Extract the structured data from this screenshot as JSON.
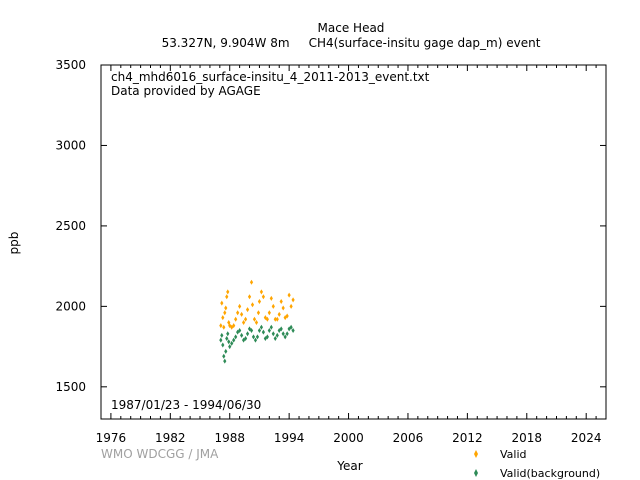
{
  "header": {
    "station": "Mace Head",
    "subtitle": "53.327N, 9.904W 8m     CH4(surface-insitu gage dap_m) event"
  },
  "info": {
    "filename": "ch4_mhd6016_surface-insitu_4_2011-2013_event.txt",
    "provider": "Data provided by AGAGE",
    "period": "1987/01/23 - 1994/06/30"
  },
  "watermark": "WMO WDCGG / JMA",
  "colors": {
    "valid": "#ffa500",
    "valid_background": "#2e8b57",
    "axis": "#000000"
  },
  "chart_data": {
    "type": "scatter",
    "xlabel": "Year",
    "ylabel": "ppb",
    "xlim": [
      1975,
      2026
    ],
    "ylim": [
      1300,
      3500
    ],
    "xticks": [
      "1976",
      "1982",
      "1988",
      "1994",
      "2000",
      "2006",
      "2012",
      "2018",
      "2024"
    ],
    "yticks": [
      "1500",
      "2000",
      "2500",
      "3000",
      "3500"
    ],
    "grid": false,
    "legend_position": "bottom-right",
    "series": [
      {
        "name": "Valid",
        "color": "#ffa500",
        "points": [
          [
            1987.1,
            1880
          ],
          [
            1987.2,
            2020
          ],
          [
            1987.3,
            1930
          ],
          [
            1987.4,
            1870
          ],
          [
            1987.5,
            1960
          ],
          [
            1987.6,
            1990
          ],
          [
            1987.7,
            2060
          ],
          [
            1987.8,
            2090
          ],
          [
            1987.9,
            1900
          ],
          [
            1988.0,
            1880
          ],
          [
            1988.2,
            1870
          ],
          [
            1988.4,
            1880
          ],
          [
            1988.6,
            1920
          ],
          [
            1988.8,
            1960
          ],
          [
            1989.0,
            2000
          ],
          [
            1989.2,
            1950
          ],
          [
            1989.4,
            1900
          ],
          [
            1989.6,
            1920
          ],
          [
            1989.8,
            1980
          ],
          [
            1990.0,
            2060
          ],
          [
            1990.2,
            2150
          ],
          [
            1990.3,
            2010
          ],
          [
            1990.5,
            1920
          ],
          [
            1990.7,
            1900
          ],
          [
            1990.9,
            1960
          ],
          [
            1991.0,
            2030
          ],
          [
            1991.2,
            2090
          ],
          [
            1991.4,
            2060
          ],
          [
            1991.6,
            1930
          ],
          [
            1991.8,
            1920
          ],
          [
            1992.0,
            1960
          ],
          [
            1992.2,
            2050
          ],
          [
            1992.4,
            2000
          ],
          [
            1992.6,
            1920
          ],
          [
            1992.8,
            1920
          ],
          [
            1993.0,
            1950
          ],
          [
            1993.2,
            2030
          ],
          [
            1993.4,
            1990
          ],
          [
            1993.6,
            1930
          ],
          [
            1993.8,
            1940
          ],
          [
            1994.0,
            2070
          ],
          [
            1994.2,
            2000
          ],
          [
            1994.4,
            2040
          ]
        ]
      },
      {
        "name": "Valid(background)",
        "color": "#2e8b57",
        "points": [
          [
            1987.1,
            1790
          ],
          [
            1987.2,
            1820
          ],
          [
            1987.3,
            1760
          ],
          [
            1987.4,
            1690
          ],
          [
            1987.5,
            1660
          ],
          [
            1987.6,
            1720
          ],
          [
            1987.7,
            1800
          ],
          [
            1987.8,
            1830
          ],
          [
            1987.9,
            1780
          ],
          [
            1988.0,
            1750
          ],
          [
            1988.2,
            1770
          ],
          [
            1988.4,
            1790
          ],
          [
            1988.6,
            1810
          ],
          [
            1988.8,
            1840
          ],
          [
            1989.0,
            1850
          ],
          [
            1989.2,
            1820
          ],
          [
            1989.4,
            1790
          ],
          [
            1989.6,
            1800
          ],
          [
            1989.8,
            1830
          ],
          [
            1990.0,
            1860
          ],
          [
            1990.2,
            1850
          ],
          [
            1990.4,
            1810
          ],
          [
            1990.6,
            1790
          ],
          [
            1990.8,
            1810
          ],
          [
            1991.0,
            1850
          ],
          [
            1991.2,
            1870
          ],
          [
            1991.4,
            1840
          ],
          [
            1991.6,
            1800
          ],
          [
            1991.8,
            1810
          ],
          [
            1992.0,
            1850
          ],
          [
            1992.2,
            1870
          ],
          [
            1992.4,
            1830
          ],
          [
            1992.6,
            1800
          ],
          [
            1992.8,
            1820
          ],
          [
            1993.0,
            1850
          ],
          [
            1993.2,
            1860
          ],
          [
            1993.4,
            1830
          ],
          [
            1993.6,
            1810
          ],
          [
            1993.8,
            1830
          ],
          [
            1994.0,
            1860
          ],
          [
            1994.2,
            1870
          ],
          [
            1994.4,
            1850
          ]
        ]
      }
    ]
  }
}
